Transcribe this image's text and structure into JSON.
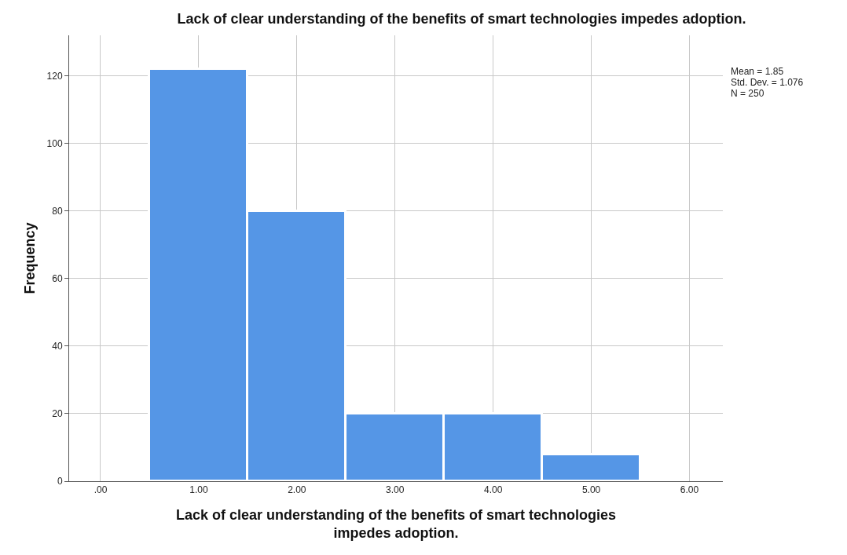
{
  "chart_data": {
    "type": "histogram",
    "title": "Lack of clear understanding of the benefits of smart technologies impedes adoption.",
    "xlabel": "Lack of clear understanding of the benefits of smart technologies impedes adoption.",
    "ylabel": "Frequency",
    "bins": [
      0.5,
      1.5,
      2.5,
      3.5,
      4.5,
      5.5
    ],
    "values": [
      122,
      80,
      20,
      20,
      8
    ],
    "color": "#5596e6",
    "xlim": [
      -0.32,
      6.34
    ],
    "ylim": [
      0,
      132
    ],
    "xticks": [
      {
        "value": 0,
        "label": ".00"
      },
      {
        "value": 1,
        "label": "1.00"
      },
      {
        "value": 2,
        "label": "2.00"
      },
      {
        "value": 3,
        "label": "3.00"
      },
      {
        "value": 4,
        "label": "4.00"
      },
      {
        "value": 5,
        "label": "5.00"
      },
      {
        "value": 6,
        "label": "6.00"
      }
    ],
    "yticks": [
      0,
      20,
      40,
      60,
      80,
      100,
      120
    ],
    "grid": true,
    "annotations": [
      "Mean = 1.85",
      "Std. Dev. = 1.076",
      "N = 250"
    ]
  }
}
